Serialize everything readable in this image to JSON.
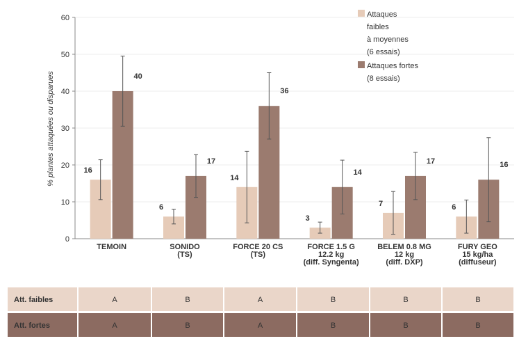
{
  "chart_data": {
    "type": "bar",
    "y_label": "% plantes attaquées ou disparues",
    "categories": [
      "TEMOIN",
      "SONIDO\n(TS)",
      "FORCE 20 CS\n(TS)",
      "FORCE 1.5 G\n12.2 kg\n(diff. Syngenta)",
      "BELEM 0.8 MG\n12 kg\n(diff. DXP)",
      "FURY GEO\n15 kg/ha\n(diffuseur)"
    ],
    "series": [
      {
        "name": "Attaques\nfaibles\nà moyennes\n(6 essais)",
        "color": "#e6cbb8",
        "values": [
          16,
          6,
          14,
          3,
          7,
          6
        ],
        "errors": [
          5.4,
          2,
          9.7,
          1.5,
          5.8,
          4.5
        ]
      },
      {
        "name": "Attaques fortes\n(8 essais)",
        "color": "#9b7b6f",
        "values": [
          40,
          17,
          36,
          14,
          17,
          16
        ],
        "errors": [
          9.5,
          5.8,
          9,
          7.3,
          6.4,
          11.4
        ]
      }
    ],
    "ylim": [
      0,
      60
    ],
    "yticks": [
      0,
      10,
      20,
      30,
      40,
      50,
      60
    ],
    "grid": true
  },
  "table": {
    "rows": [
      [
        "Att. faibles",
        "A",
        "B",
        "A",
        "B",
        "B",
        "B"
      ],
      [
        "Att. fortes",
        "A",
        "B",
        "A",
        "B",
        "B",
        "B"
      ]
    ]
  }
}
